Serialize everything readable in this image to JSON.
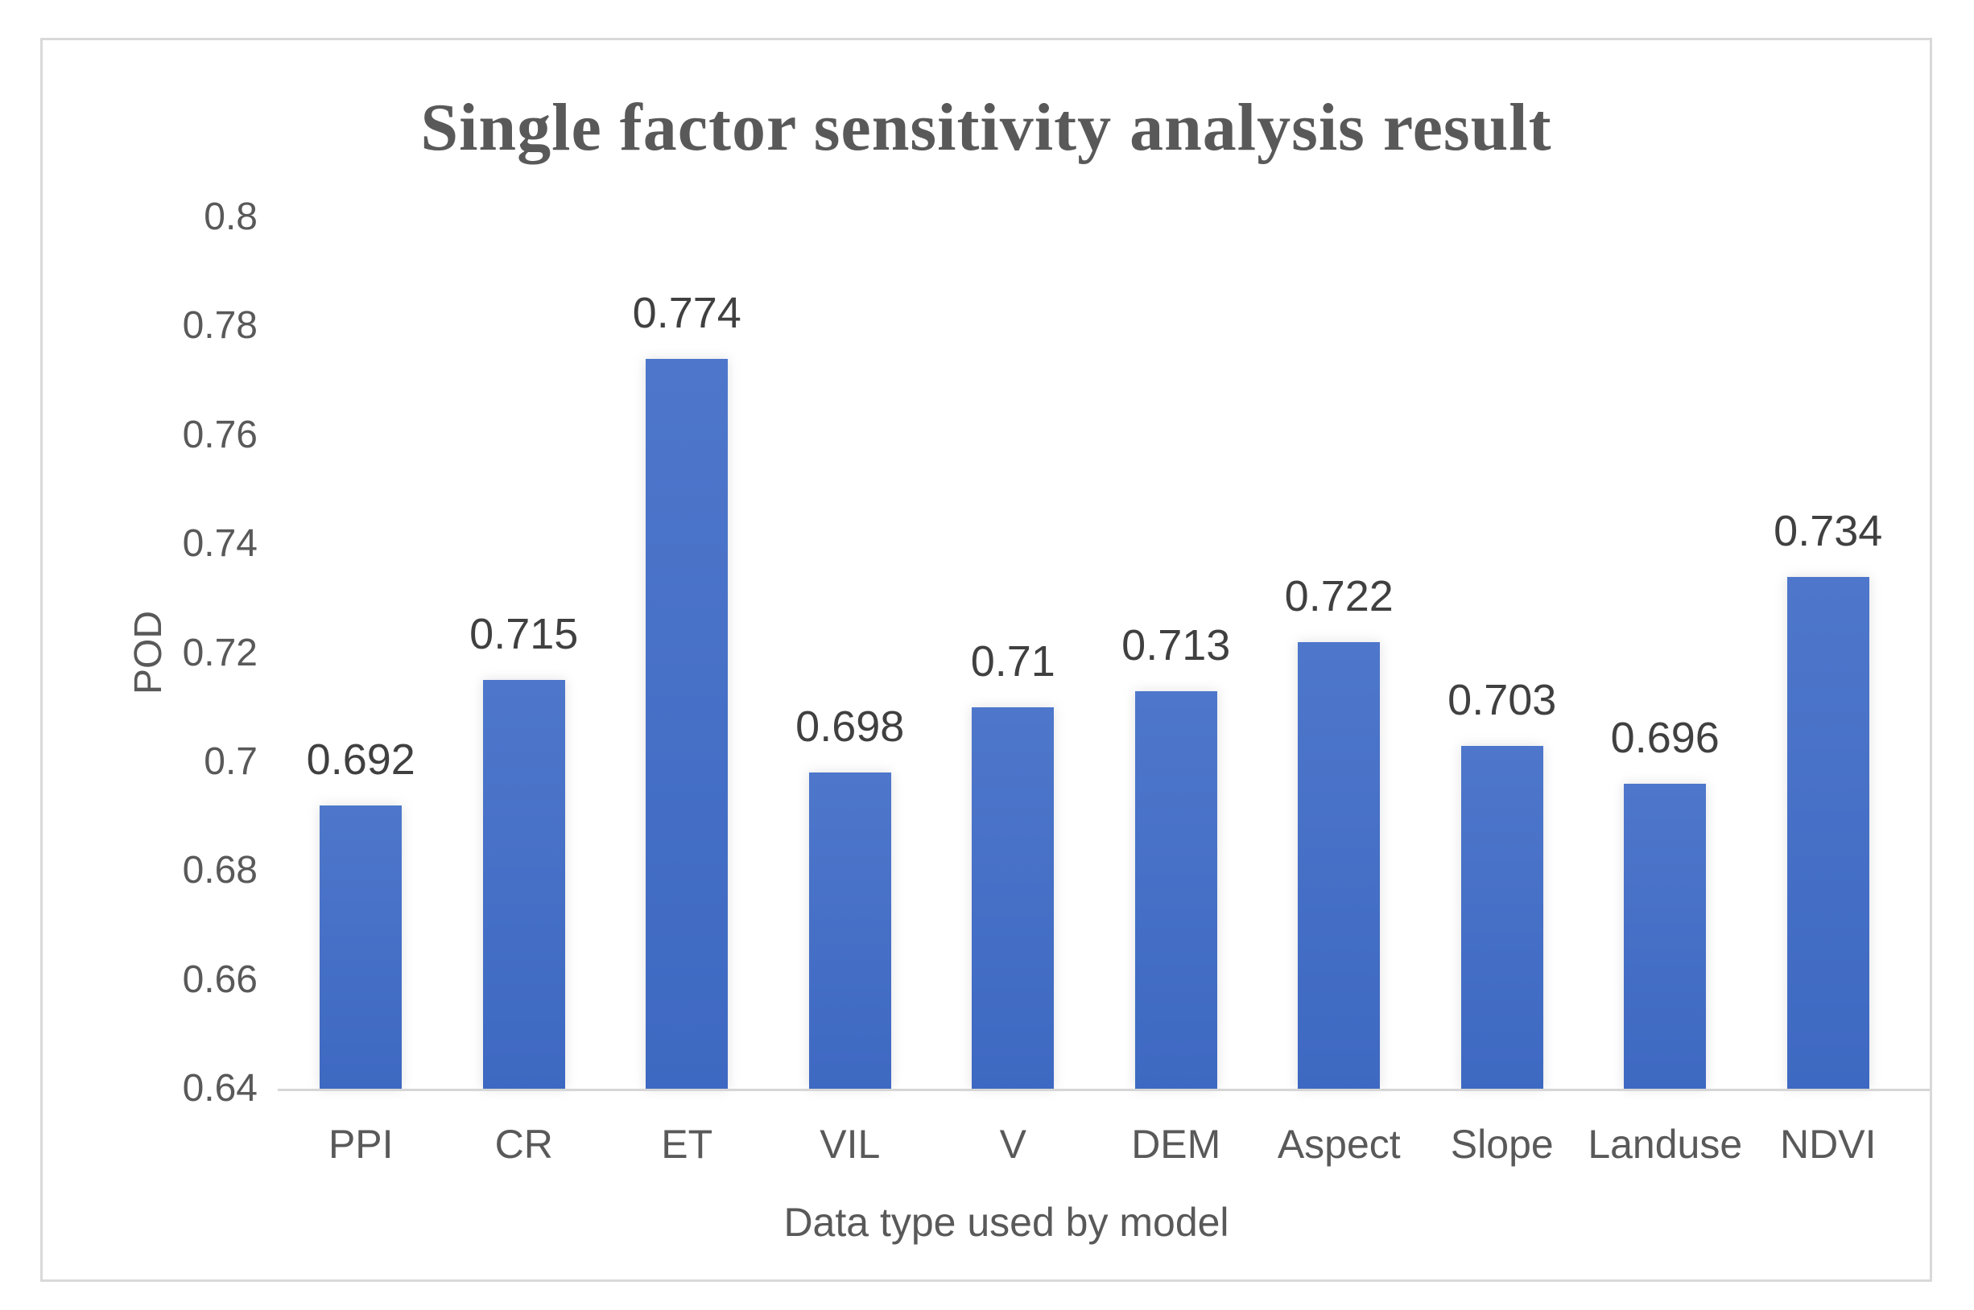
{
  "figure": {
    "title": "Single factor sensitivity analysis result"
  },
  "chart_data": {
    "type": "bar",
    "title": "Single factor sensitivity analysis result",
    "xlabel": "Data type used by model",
    "ylabel": "POD",
    "categories": [
      "PPI",
      "CR",
      "ET",
      "VIL",
      "V",
      "DEM",
      "Aspect",
      "Slope",
      "Landuse",
      "NDVI"
    ],
    "values": [
      0.692,
      0.715,
      0.774,
      0.698,
      0.71,
      0.713,
      0.722,
      0.703,
      0.696,
      0.734
    ],
    "value_labels": [
      "0.692",
      "0.715",
      "0.774",
      "0.698",
      "0.71",
      "0.713",
      "0.722",
      "0.703",
      "0.696",
      "0.734"
    ],
    "ylim": [
      0.64,
      0.8
    ],
    "ytick_values": [
      0.8,
      0.78,
      0.76,
      0.74,
      0.72,
      0.7,
      0.68,
      0.66,
      0.64
    ],
    "ytick_labels": [
      "0.8",
      "0.78",
      "0.76",
      "0.74",
      "0.72",
      "0.7",
      "0.68",
      "0.66",
      "0.64"
    ],
    "grid": false,
    "legend": "none",
    "colors": {
      "bar_top": "#4e77cb",
      "bar_bottom": "#3e69c2",
      "text": "#595959",
      "axis_line": "#d6d6d6",
      "frame_border": "#d9d9d9",
      "background": "#ffffff"
    }
  }
}
